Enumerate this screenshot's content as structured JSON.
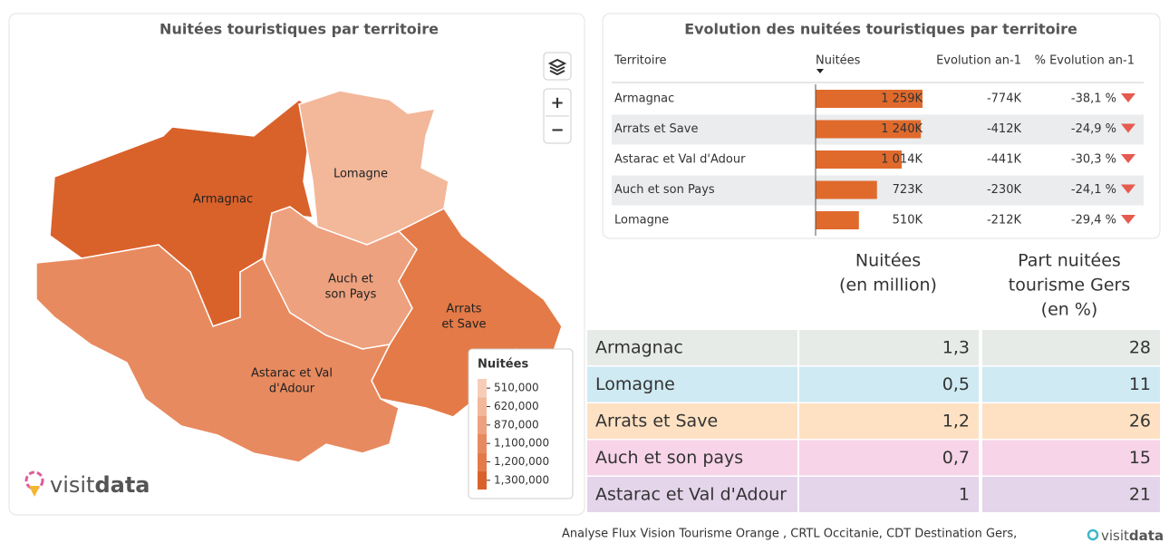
{
  "map_panel": {
    "title": "Nuitées touristiques par territoire",
    "zoom_in": "+",
    "zoom_out": "−",
    "regions": [
      {
        "name": "Armagnac",
        "lines": [
          "Armagnac"
        ],
        "color": "#d9622b"
      },
      {
        "name": "Lomagne",
        "lines": [
          "Lomagne"
        ],
        "color": "#f3b79a"
      },
      {
        "name": "Auch et son Pays",
        "lines": [
          "Auch et",
          "son Pays"
        ],
        "color": "#eda17e"
      },
      {
        "name": "Arrats et Save",
        "lines": [
          "Arrats",
          "et Save"
        ],
        "color": "#e47a47"
      },
      {
        "name": "Astarac et Val d'Adour",
        "lines": [
          "Astarac et Val",
          "d'Adour"
        ],
        "color": "#e88a5f"
      }
    ],
    "legend": {
      "title": "Nuitées",
      "items": [
        {
          "value": 510000,
          "label": "510,000",
          "color": "#f7cdb9"
        },
        {
          "value": 620000,
          "label": "620,000",
          "color": "#f3b79a"
        },
        {
          "value": 870000,
          "label": "870,000",
          "color": "#eda17e"
        },
        {
          "value": 1100000,
          "label": "1,100,000",
          "color": "#e88a5f"
        },
        {
          "value": 1200000,
          "label": "1,200,000",
          "color": "#e47a47"
        },
        {
          "value": 1300000,
          "label": "1,300,000",
          "color": "#d9622b"
        }
      ]
    },
    "logo": [
      "visit",
      "data"
    ]
  },
  "evolution_table": {
    "title": "Evolution des nuitées touristiques par territoire",
    "bar_color": "#e06a2c",
    "headers": [
      "Territoire",
      "Nuitées",
      "Evolution an-1",
      "% Evolution an-1"
    ],
    "rows": [
      {
        "territoire": "Armagnac",
        "nuitees": 1259,
        "nuitees_label": "1 259K",
        "evolution": "-774K",
        "pct": "-38,1 %"
      },
      {
        "territoire": "Arrats et Save",
        "nuitees": 1240,
        "nuitees_label": "1 240K",
        "evolution": "-412K",
        "pct": "-24,9 %"
      },
      {
        "territoire": "Astarac et Val d'Adour",
        "nuitees": 1014,
        "nuitees_label": "1 014K",
        "evolution": "-441K",
        "pct": "-30,3 %"
      },
      {
        "territoire": "Auch et son Pays",
        "nuitees": 723,
        "nuitees_label": "723K",
        "evolution": "-230K",
        "pct": "-24,1 %"
      },
      {
        "territoire": "Lomagne",
        "nuitees": 510,
        "nuitees_label": "510K",
        "evolution": "-212K",
        "pct": "-29,4 %"
      }
    ]
  },
  "summary_table": {
    "headers": [
      [
        "Nuitées",
        "(en million)"
      ],
      [
        "Part nuitées",
        "tourisme Gers",
        "(en %)"
      ]
    ],
    "rows": [
      {
        "name": "Armagnac",
        "nuitees": "1,3",
        "part": "28",
        "color": "#e7ebe8"
      },
      {
        "name": "Lomagne",
        "nuitees": "0,5",
        "part": "11",
        "color": "#cfeaf3"
      },
      {
        "name": "Arrats et Save",
        "nuitees": "1,2",
        "part": "26",
        "color": "#fde1c2"
      },
      {
        "name": "Auch et son pays",
        "nuitees": "0,7",
        "part": "15",
        "color": "#f7d4e8"
      },
      {
        "name": "Astarac et Val d'Adour",
        "nuitees": "1",
        "part": "21",
        "color": "#e4d5eb"
      }
    ]
  },
  "footer": {
    "source": "Analyse Flux Vision Tourisme Orange , CRTL Occitanie, CDT Destination Gers,",
    "logo": [
      "visit",
      "data"
    ]
  }
}
